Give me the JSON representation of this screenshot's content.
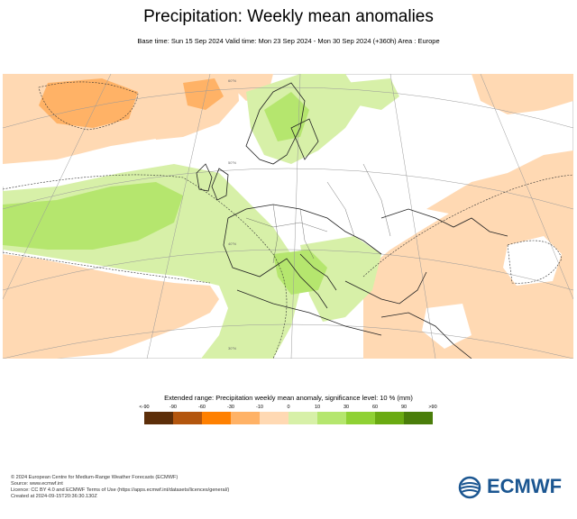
{
  "header": {
    "title": "Precipitation: Weekly mean anomalies",
    "subtitle": "Base time: Sun 15 Sep 2024 Valid time: Mon 23 Sep 2024 - Mon 30 Sep 2024 (+360h) Area : Europe"
  },
  "legend": {
    "title": "Extended range: Precipitation weekly mean anomaly, significance level: 10 % (mm)",
    "ticks": [
      "<-90",
      "-90",
      "-60",
      "-30",
      "-10",
      "0",
      "10",
      "30",
      "60",
      "90",
      ">90"
    ],
    "colors": [
      "#5c2e09",
      "#b3560e",
      "#ff8000",
      "#ffb266",
      "#ffd9b3",
      "#d7f0a8",
      "#b5e66e",
      "#8fd134",
      "#6aaa12",
      "#4a7d0a"
    ]
  },
  "map": {
    "graticule_labels": [
      "60°N",
      "50°N",
      "40°N",
      "30°N"
    ]
  },
  "footer": {
    "lines": [
      "© 2024 European Centre for Medium-Range Weather Forecasts (ECMWF)",
      "Source: www.ecmwf.int",
      "Licence: CC BY 4.0 and ECMWF Terms of Use (https://apps.ecmwf.int/datasets/licences/general/)",
      "Created at 2024-09-15T20:36:30.130Z"
    ]
  },
  "brand": {
    "name": "ECMWF",
    "color": "#1b5691"
  }
}
